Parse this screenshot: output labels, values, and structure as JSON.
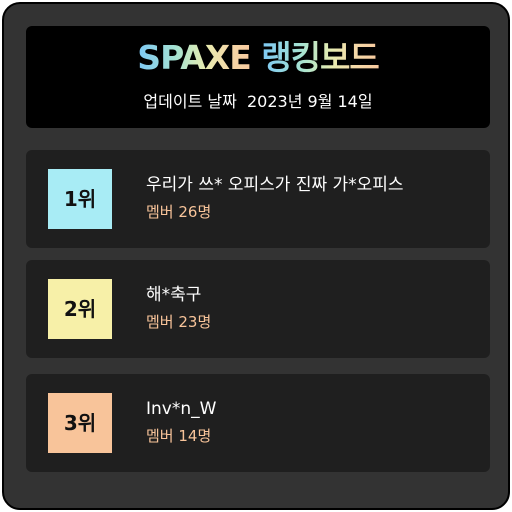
{
  "header": {
    "title_latin": "SPAXE",
    "title_korean": "랭킹보드",
    "updated_label": "업데이트 날짜",
    "updated_date": "2023년 9월 14일"
  },
  "rankings": [
    {
      "rank": "1위",
      "name": "우리가 쓰* 오피스가 진짜 가*오피스",
      "members": "멤버 26명",
      "badge_color": "#a8ecf5"
    },
    {
      "rank": "2위",
      "name": "해*축구",
      "members": "멤버 23명",
      "badge_color": "#f7f0a8"
    },
    {
      "rank": "3위",
      "name": "Inv*n_W",
      "members": "멤버 14명",
      "badge_color": "#f8c49a"
    }
  ],
  "colors": {
    "background": "#333333",
    "panel": "#1f1f1f",
    "header": "#000000",
    "member_text": "#f8c49a"
  }
}
